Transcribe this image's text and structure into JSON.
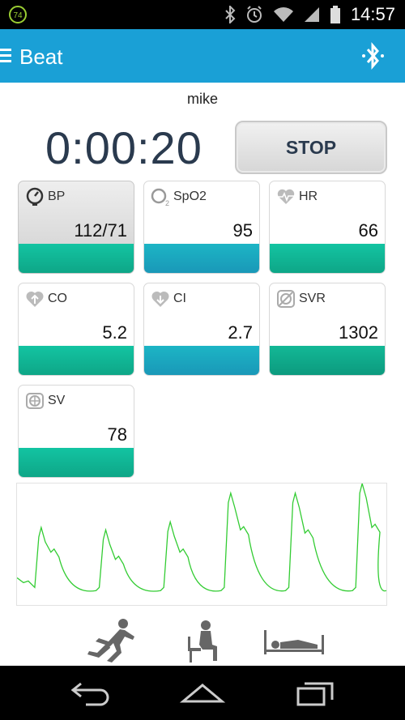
{
  "status_bar": {
    "notification_badge": "74",
    "time": "14:57",
    "icons": [
      "bluetooth-icon",
      "alarm-icon",
      "wifi-icon",
      "signal-icon",
      "battery-icon"
    ]
  },
  "action_bar": {
    "title": "Beat",
    "accent_color": "#1aa0d6"
  },
  "session": {
    "user_name": "mike",
    "elapsed_time": "0:00:20",
    "stop_label": "STOP"
  },
  "metrics": [
    {
      "label": "BP",
      "value": "112/71",
      "icon": "gauge-icon",
      "color": "#13c4a2"
    },
    {
      "label": "SpO2",
      "value": "95",
      "icon": "oxygen-icon",
      "color": "#1cb5c5"
    },
    {
      "label": "HR",
      "value": "66",
      "icon": "heart-pulse-icon",
      "color": "#13c4a2"
    },
    {
      "label": "CO",
      "value": "5.2",
      "icon": "heart-up-icon",
      "color": "#13c4a2"
    },
    {
      "label": "CI",
      "value": "2.7",
      "icon": "heart-down-icon",
      "color": "#1cb5c5"
    },
    {
      "label": "SVR",
      "value": "1302",
      "icon": "resistance-icon",
      "color": "#13b896"
    },
    {
      "label": "SV",
      "value": "78",
      "icon": "turbine-icon",
      "color": "#13c4a2"
    }
  ],
  "waveform": {
    "color": "#33cc33",
    "beats": 6
  },
  "postures": [
    "running-icon",
    "sitting-icon",
    "lying-icon"
  ],
  "nav_bar": [
    "back-icon",
    "home-icon",
    "recents-icon"
  ]
}
